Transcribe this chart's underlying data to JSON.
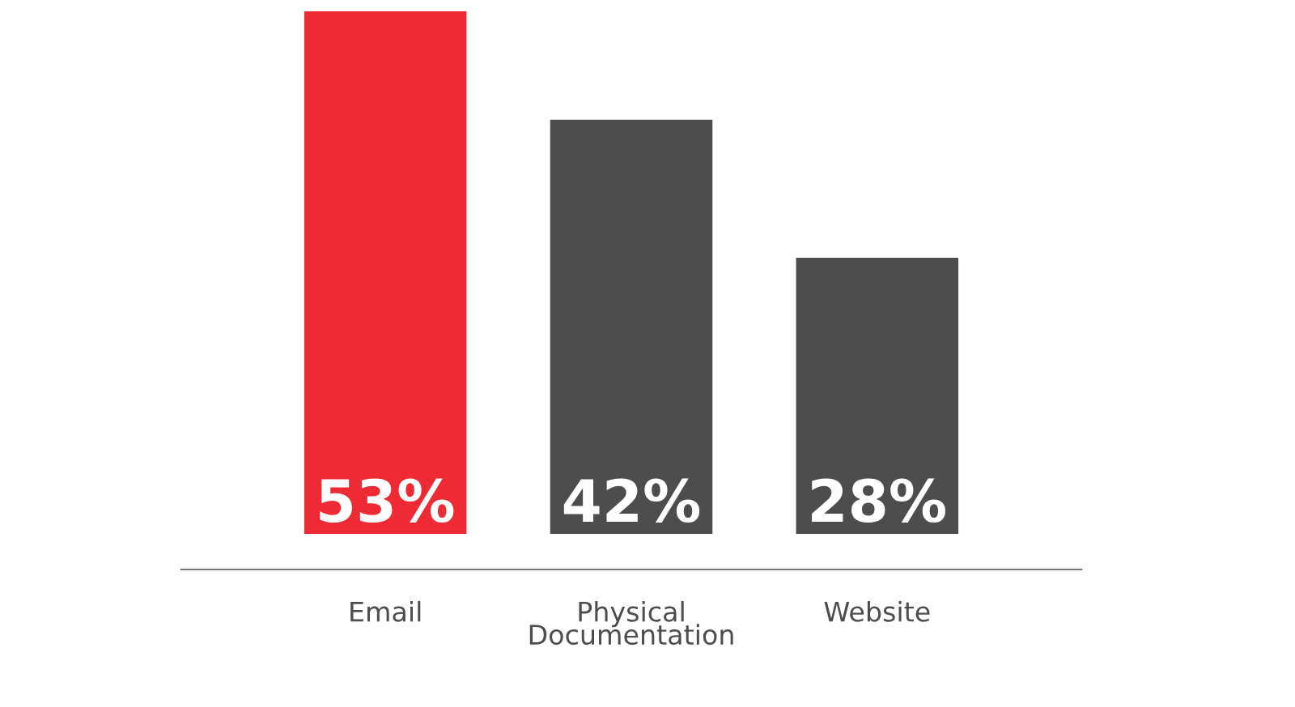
{
  "chart_data": {
    "type": "bar",
    "categories": [
      "Email",
      "Physical Documentation",
      "Website"
    ],
    "values": [
      53,
      42,
      28
    ],
    "colors": [
      "#ee2a35",
      "#4d4d4d",
      "#4d4d4d"
    ],
    "value_labels": [
      "53%",
      "42%",
      "28%"
    ],
    "grid": false,
    "legend": false
  }
}
